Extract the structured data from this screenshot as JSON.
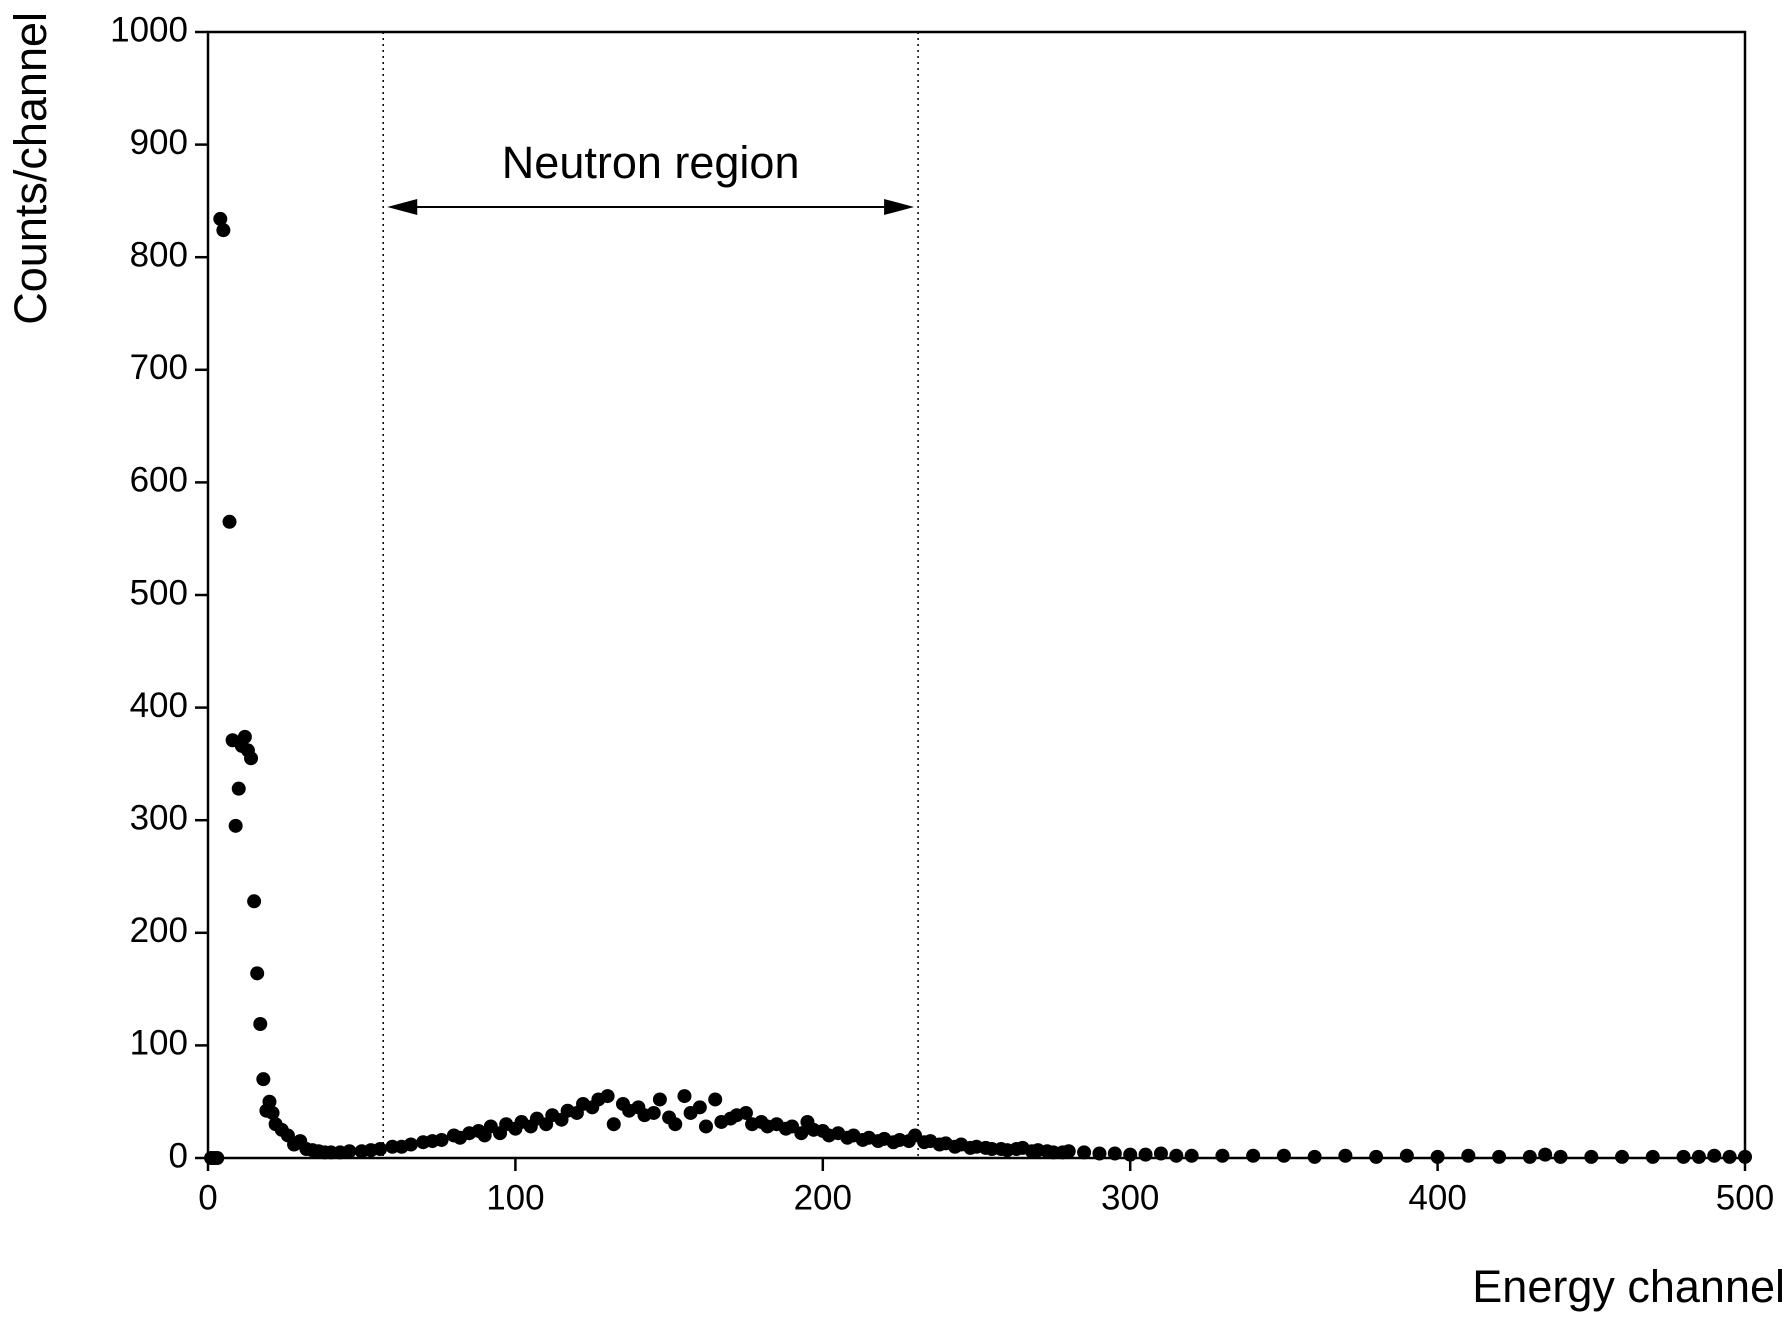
{
  "chart_data": {
    "type": "scatter",
    "x_label": "Energy channel",
    "y_label": "Counts/channel",
    "annotation": "Neutron region",
    "region": [
      57,
      231
    ],
    "color": "#000000",
    "xlim": [
      0,
      500
    ],
    "xticks": [
      0,
      100,
      200,
      300,
      400,
      500
    ],
    "ylim": [
      0,
      1000
    ],
    "yticks": [
      0,
      100,
      200,
      300,
      400,
      500,
      600,
      700,
      800,
      900,
      1000
    ],
    "x": [
      1,
      2,
      3,
      4,
      5,
      7,
      8,
      9,
      10,
      11,
      12,
      13,
      14,
      15,
      16,
      17,
      18,
      19,
      20,
      21,
      22,
      24,
      26,
      28,
      30,
      32,
      34,
      36,
      38,
      40,
      43,
      46,
      50,
      53,
      56,
      60,
      63,
      66,
      70,
      73,
      76,
      80,
      82,
      85,
      88,
      90,
      92,
      95,
      97,
      100,
      102,
      105,
      107,
      110,
      112,
      115,
      117,
      120,
      122,
      125,
      127,
      130,
      132,
      135,
      137,
      140,
      142,
      145,
      147,
      150,
      152,
      155,
      157,
      160,
      162,
      165,
      167,
      170,
      172,
      175,
      177,
      180,
      182,
      185,
      188,
      190,
      193,
      195,
      197,
      200,
      202,
      205,
      208,
      210,
      213,
      215,
      218,
      220,
      223,
      225,
      228,
      230,
      233,
      235,
      238,
      240,
      243,
      245,
      248,
      250,
      253,
      255,
      258,
      260,
      263,
      265,
      268,
      270,
      273,
      275,
      278,
      280,
      285,
      290,
      295,
      300,
      305,
      310,
      315,
      320,
      330,
      340,
      350,
      360,
      370,
      380,
      390,
      400,
      410,
      420,
      430,
      435,
      440,
      450,
      460,
      470,
      480,
      485,
      490,
      495,
      500
    ],
    "values": [
      0,
      0,
      0,
      834,
      824,
      565,
      371,
      295,
      328,
      366,
      374,
      362,
      355,
      228,
      164,
      119,
      70,
      42,
      50,
      40,
      30,
      25,
      20,
      12,
      15,
      8,
      7,
      6,
      5,
      5,
      5,
      6,
      6,
      7,
      8,
      10,
      10,
      12,
      14,
      15,
      16,
      20,
      18,
      22,
      24,
      20,
      28,
      22,
      30,
      26,
      32,
      28,
      35,
      30,
      38,
      34,
      42,
      40,
      48,
      45,
      52,
      55,
      30,
      48,
      42,
      45,
      38,
      40,
      52,
      36,
      30,
      55,
      40,
      45,
      28,
      52,
      32,
      35,
      38,
      40,
      30,
      32,
      28,
      30,
      26,
      28,
      22,
      32,
      25,
      24,
      20,
      22,
      18,
      20,
      16,
      18,
      15,
      17,
      14,
      16,
      15,
      20,
      14,
      15,
      12,
      13,
      10,
      12,
      9,
      10,
      9,
      8,
      8,
      7,
      8,
      9,
      6,
      7,
      6,
      5,
      5,
      6,
      5,
      4,
      4,
      3,
      3,
      4,
      2,
      2,
      2,
      2,
      2,
      1,
      2,
      1,
      2,
      1,
      2,
      1,
      1,
      3,
      1,
      1,
      1,
      1,
      1,
      1,
      2,
      1,
      1
    ]
  }
}
